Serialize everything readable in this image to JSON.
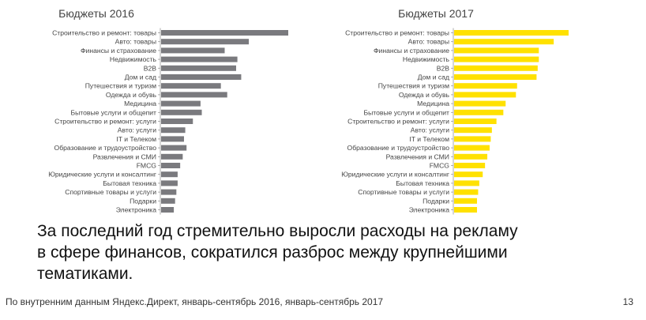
{
  "chart_data": [
    {
      "type": "bar",
      "orientation": "horizontal",
      "title": "Бюджеты 2016",
      "color": "#7a7a7e",
      "categories": [
        "Строительство и ремонт: товары",
        "Авто: товары",
        "Финансы и страхование",
        "Недвижимость",
        "B2B",
        "Дом и сад",
        "Путешествия и туризм",
        "Одежда и обувь",
        "Медицина",
        "Бытовые услуги и общепит",
        "Строительство и ремонт: услуги",
        "Авто: услуги",
        "IT и Телеком",
        "Образование и трудоустройство",
        "Развлечения и СМИ",
        "FMCG",
        "Юридические услуги и консалтинг",
        "Бытовая техника",
        "Спортивные товары и услуги",
        "Подарки",
        "Электроника"
      ],
      "values": [
        100,
        69,
        50,
        60,
        59,
        63,
        47,
        52,
        31,
        32,
        25,
        19,
        18,
        20,
        17,
        15,
        13,
        13,
        12,
        11,
        10
      ],
      "xlim": [
        0,
        100
      ]
    },
    {
      "type": "bar",
      "orientation": "horizontal",
      "title": "Бюджеты 2017",
      "color": "#ffe100",
      "categories": [
        "Строительство и ремонт: товары",
        "Авто: товары",
        "Финансы и страхование",
        "Недвижимость",
        "B2B",
        "Дом и сад",
        "Путешествия и туризм",
        "Одежда и обувь",
        "Медицина",
        "Бытовые услуги и общепит",
        "Строительство и ремонт: услуги",
        "Авто: услуги",
        "IT и Телеком",
        "Образование и трудоустройство",
        "Развлечения и СМИ",
        "FMCG",
        "Юридические услуги и консалтинг",
        "Бытовая техника",
        "Спортивные товары и услуги",
        "Подарки",
        "Электроника"
      ],
      "values": [
        100,
        87,
        74,
        74,
        73,
        72,
        55,
        54,
        45,
        43,
        37,
        33,
        32,
        31,
        29,
        27,
        25,
        22,
        21,
        20,
        20
      ],
      "xlim": [
        0,
        100
      ]
    }
  ],
  "headline": {
    "line1": "За последний год стремительно выросли расходы на рекламу",
    "line2": "в сфере финансов, сократился разброс между крупнейшими",
    "line3": "тематиками."
  },
  "footnote": "По внутренним данным Яндекс.Директ, январь-сентябрь 2016, январь-сентябрь 2017",
  "page_number": "13"
}
